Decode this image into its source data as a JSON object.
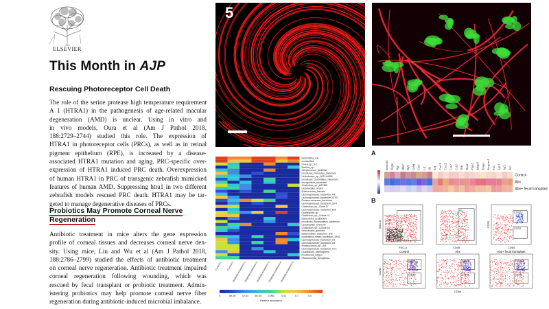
{
  "publisher": {
    "name": "ELSEVIER"
  },
  "header": {
    "title_plain": "This Month in ",
    "title_italic": "AJP"
  },
  "article1": {
    "heading": "Rescuing Photoreceptor Cell Death",
    "lines": [
      "The role of the serine protease high temperature requirement",
      "A 1 (HTRA1) in the pathogenesis of age-related macular",
      "degeneration (AMD) is unclear. Using in vitro and",
      "in vivo models, Oura et al (Am J Pathol 2018,",
      "188:2729–2744) studied this role. The expression of",
      "HTRA1 in photoreceptor cells (PRCs), as well as in retinal",
      "pigment epithelium (RPE), is increased by a disease-",
      "associated HTRA1 mutation and aging. PRC-specific over-",
      "expression of HTRA1 induced PRC death. Overexpression",
      "of human HTRA1 in PRC of transgenic zebrafish mimicked",
      "features of human AMD. Suppressing htra1 in two different",
      "zebrafish models rescued PRC death. HTRA1 may be tar-",
      "geted to manage degenerative diseases of PRCs."
    ]
  },
  "article2": {
    "heading_line1": "Probiotics May Promote Corneal Nerve",
    "heading_line2": "Regeneration",
    "lines": [
      "Antibiotic treatment in mice alters the gene expression",
      "profile of corneal tissues and decreases corneal nerve den-",
      "sity. Using mice, Liu and Wu et al (Am J Pathol 2018,",
      "188:2786–2799) studied the effects of antibiotic treatment",
      "on corneal nerve regeneration. Antibiotic treatment impaired",
      "corneal regeneration following wounding, which was",
      "rescued by fecal transplant or probiotic treatment. Admin-",
      "istering probiotics may help promote corneal nerve fiber",
      "regeneration during antibiotic-induced microbial imbalance."
    ]
  },
  "figure": {
    "number": "5",
    "panel_a": "A",
    "panel_b": "B",
    "heatmap_rows": [
      "Control",
      "Abx",
      "Abx+ fecal transplant"
    ],
    "heatmap_genes": [
      "Sema3a",
      "Vegfa",
      "Ngf",
      "Bdnf",
      "Ntf3",
      "Gdnf",
      "Cntf",
      "Lif",
      "Il6",
      "Tnf",
      "Cxcl1",
      "Cxcl2",
      "Ccl2",
      "Ccl3",
      "Il1b",
      "Nos2",
      "Ptgs2",
      "Mmp9",
      "Timp1",
      "Serpine1",
      "Fos",
      "Egr1",
      "Atf3",
      "Jun"
    ],
    "flow_labels": {
      "ssc": "SSC-A",
      "fsc": "FSC-A",
      "cd45": "CD45",
      "cd64": "CD64",
      "ccr2": "CCR2",
      "p1": "P1",
      "p2": "P2",
      "ccr2_pos": "CCR2+",
      "ccr2_neg": "CCR2-",
      "control": "Control",
      "abx": "Abx",
      "abx_fecal": "Abx+ fecal transplant"
    },
    "microbiome_cols": [
      "Control-1",
      "Control-2",
      "Antibiotic-treatment-1",
      "Antibiotic-treatment-2",
      "Antibiotic-treatment-3",
      "Antibiotic-treatment-4",
      "Antibiotic-treatment-5"
    ],
    "microbiome_taxa": [
      "Escherichia_coli",
      "unclassified",
      "Dorea_sp._5-2",
      "Bacillus_sp.",
      "Streptococcus_danieliae",
      "uncultured_Firmicutes_bacterium",
      "Helicobacter_sp._MIT01-6451",
      "uncultured_Clostridiales_bacterium",
      "Mucispirillum_schaedleri",
      "Clostridium_sp._ASF356",
      "Lactobacillus_reuteri",
      "Enterococcus_faecalis",
      "Lachnospiraceae_bacterium_A4",
      "Lachnospiraceae_bacterium_COE1",
      "Ruminococcaceae_bacterium",
      "Lachnospiraceae_bacterium_28-4",
      "Clostridium_sp._Clone-17",
      "Lachnospiraceae_bacterium_609",
      "Oscillibacter_sp.",
      "Clostridium_sp._Culture-41",
      "Bacteroides_acidifaciens",
      "uncultured_Bacteroidetes_bacterium",
      "Lactobacillus_johnsonii",
      "Clostridium_sp._Culture-54",
      "Helicobacter_ganmani",
      "Bacteroidales_bacterium_ph8",
      "unidentified_rumen_bacterium_JW32",
      "Lachnospiraceae_bacterium_A2",
      "Lachnospiraceae_bacterium_A4",
      "Ruminococcus_sp._ID8",
      "Lachnospiraceae_bacterium_10-1",
      "Oscillibacter_valericigenes",
      "Providencia_rettgeri",
      "Pseudomonas_aeruginosa"
    ],
    "colorbar_ticks": [
      "0",
      "6e-06",
      "1e-04",
      "6e-04",
      "0.006",
      "0.02",
      "0.1",
      "0.4",
      "1"
    ],
    "colorbar_label": "Relative abundance"
  }
}
